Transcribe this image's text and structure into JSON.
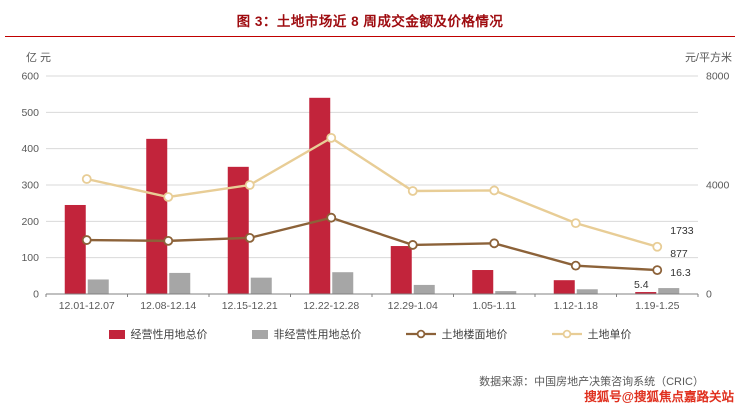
{
  "title": "图 3：土地市场近 8 周成交金额及价格情况",
  "source_text": "数据来源：中国房地产决策咨询系统（CRIC）",
  "watermark": "搜狐号@搜狐焦点嘉路关站",
  "colors": {
    "title": "#9E0B0F",
    "title_underline": "#C00000",
    "bar_operational": "#C2243B",
    "bar_non_operational": "#A6A6A6",
    "line_floor_price": "#8C6239",
    "line_unit_price": "#E8CD96",
    "grid": "#D9D9D9",
    "axis_line": "#808080",
    "axis_text": "#595959",
    "label_text": "#333333",
    "watermark_red": "#E0301E"
  },
  "chart_data": {
    "type": "combo",
    "title": "图 3：土地市场近 8 周成交金额及价格情况",
    "categories": [
      "12.01-12.07",
      "12.08-12.14",
      "12.15-12.21",
      "12.22-12.28",
      "12.29-1.04",
      "1.05-1.11",
      "1.12-1.18",
      "1.19-1.25"
    ],
    "left_axis": {
      "label": "亿 元",
      "min": 0,
      "max": 600,
      "step": 100
    },
    "right_axis": {
      "label": "元/平方米",
      "min": 0,
      "max": 8000,
      "ticks": [
        0,
        4000,
        8000
      ]
    },
    "bar_series": [
      {
        "name": "经营性用地总价",
        "axis": "left",
        "color_key": "bar_operational",
        "values": [
          245,
          427,
          350,
          540,
          132,
          66,
          38,
          5.4
        ]
      },
      {
        "name": "非经营性用地总价",
        "axis": "left",
        "color_key": "bar_non_operational",
        "values": [
          40,
          58,
          45,
          60,
          25,
          8,
          13,
          16.3
        ]
      }
    ],
    "line_series": [
      {
        "name": "土地楼面地价",
        "axis": "right",
        "color_key": "line_floor_price",
        "values": [
          1980,
          1950,
          2060,
          2800,
          1800,
          1860,
          1040,
          877
        ]
      },
      {
        "name": "土地单价",
        "axis": "right",
        "color_key": "line_unit_price",
        "values": [
          4220,
          3560,
          4000,
          5730,
          3780,
          3800,
          2600,
          1733
        ]
      }
    ],
    "end_labels": {
      "经营性用地总价": "5.4",
      "非经营性用地总价": "16.3",
      "土地楼面地价": "877",
      "土地单价": "1733"
    },
    "grid": true,
    "legend_position": "bottom"
  }
}
